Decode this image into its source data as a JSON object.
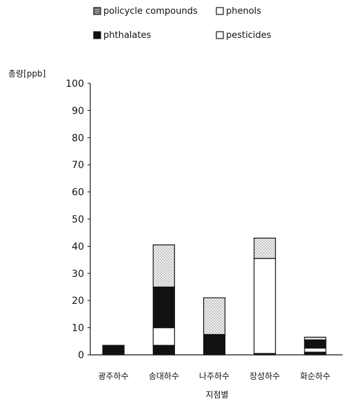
{
  "chart_data": {
    "type": "bar",
    "stacked": true,
    "ylabel": "총량[ppb]",
    "xlabel": "지점별",
    "ylim": [
      0,
      100
    ],
    "yticks": [
      0,
      10,
      20,
      30,
      40,
      50,
      60,
      70,
      80,
      90,
      100
    ],
    "categories": [
      "광주하수",
      "송대하수",
      "나주하수",
      "장성하수",
      "화순하수"
    ],
    "legend_placement": "top",
    "series": [
      {
        "name": "phthalates",
        "values": [
          3.5,
          3.5,
          7.5,
          0.5,
          1
        ],
        "color": "#111111",
        "pattern": "solid"
      },
      {
        "name": "phenols",
        "values": [
          0,
          6.5,
          0,
          35,
          1.5
        ],
        "color": "#ffffff",
        "pattern": "white"
      },
      {
        "name": "phthalates",
        "values": [
          0,
          15,
          0,
          0,
          3
        ],
        "color": "#111111",
        "pattern": "solid"
      },
      {
        "name": "pesticides",
        "values": [
          0,
          15.5,
          13.5,
          7.5,
          1
        ],
        "color": "#cfcfcf",
        "pattern": "stipple"
      }
    ],
    "legend": [
      {
        "label": "policycle compounds",
        "pattern": "dotted-box"
      },
      {
        "label": "phenols",
        "pattern": "white"
      },
      {
        "label": "phthalates",
        "pattern": "solid"
      },
      {
        "label": "pesticides",
        "pattern": "white"
      }
    ]
  }
}
